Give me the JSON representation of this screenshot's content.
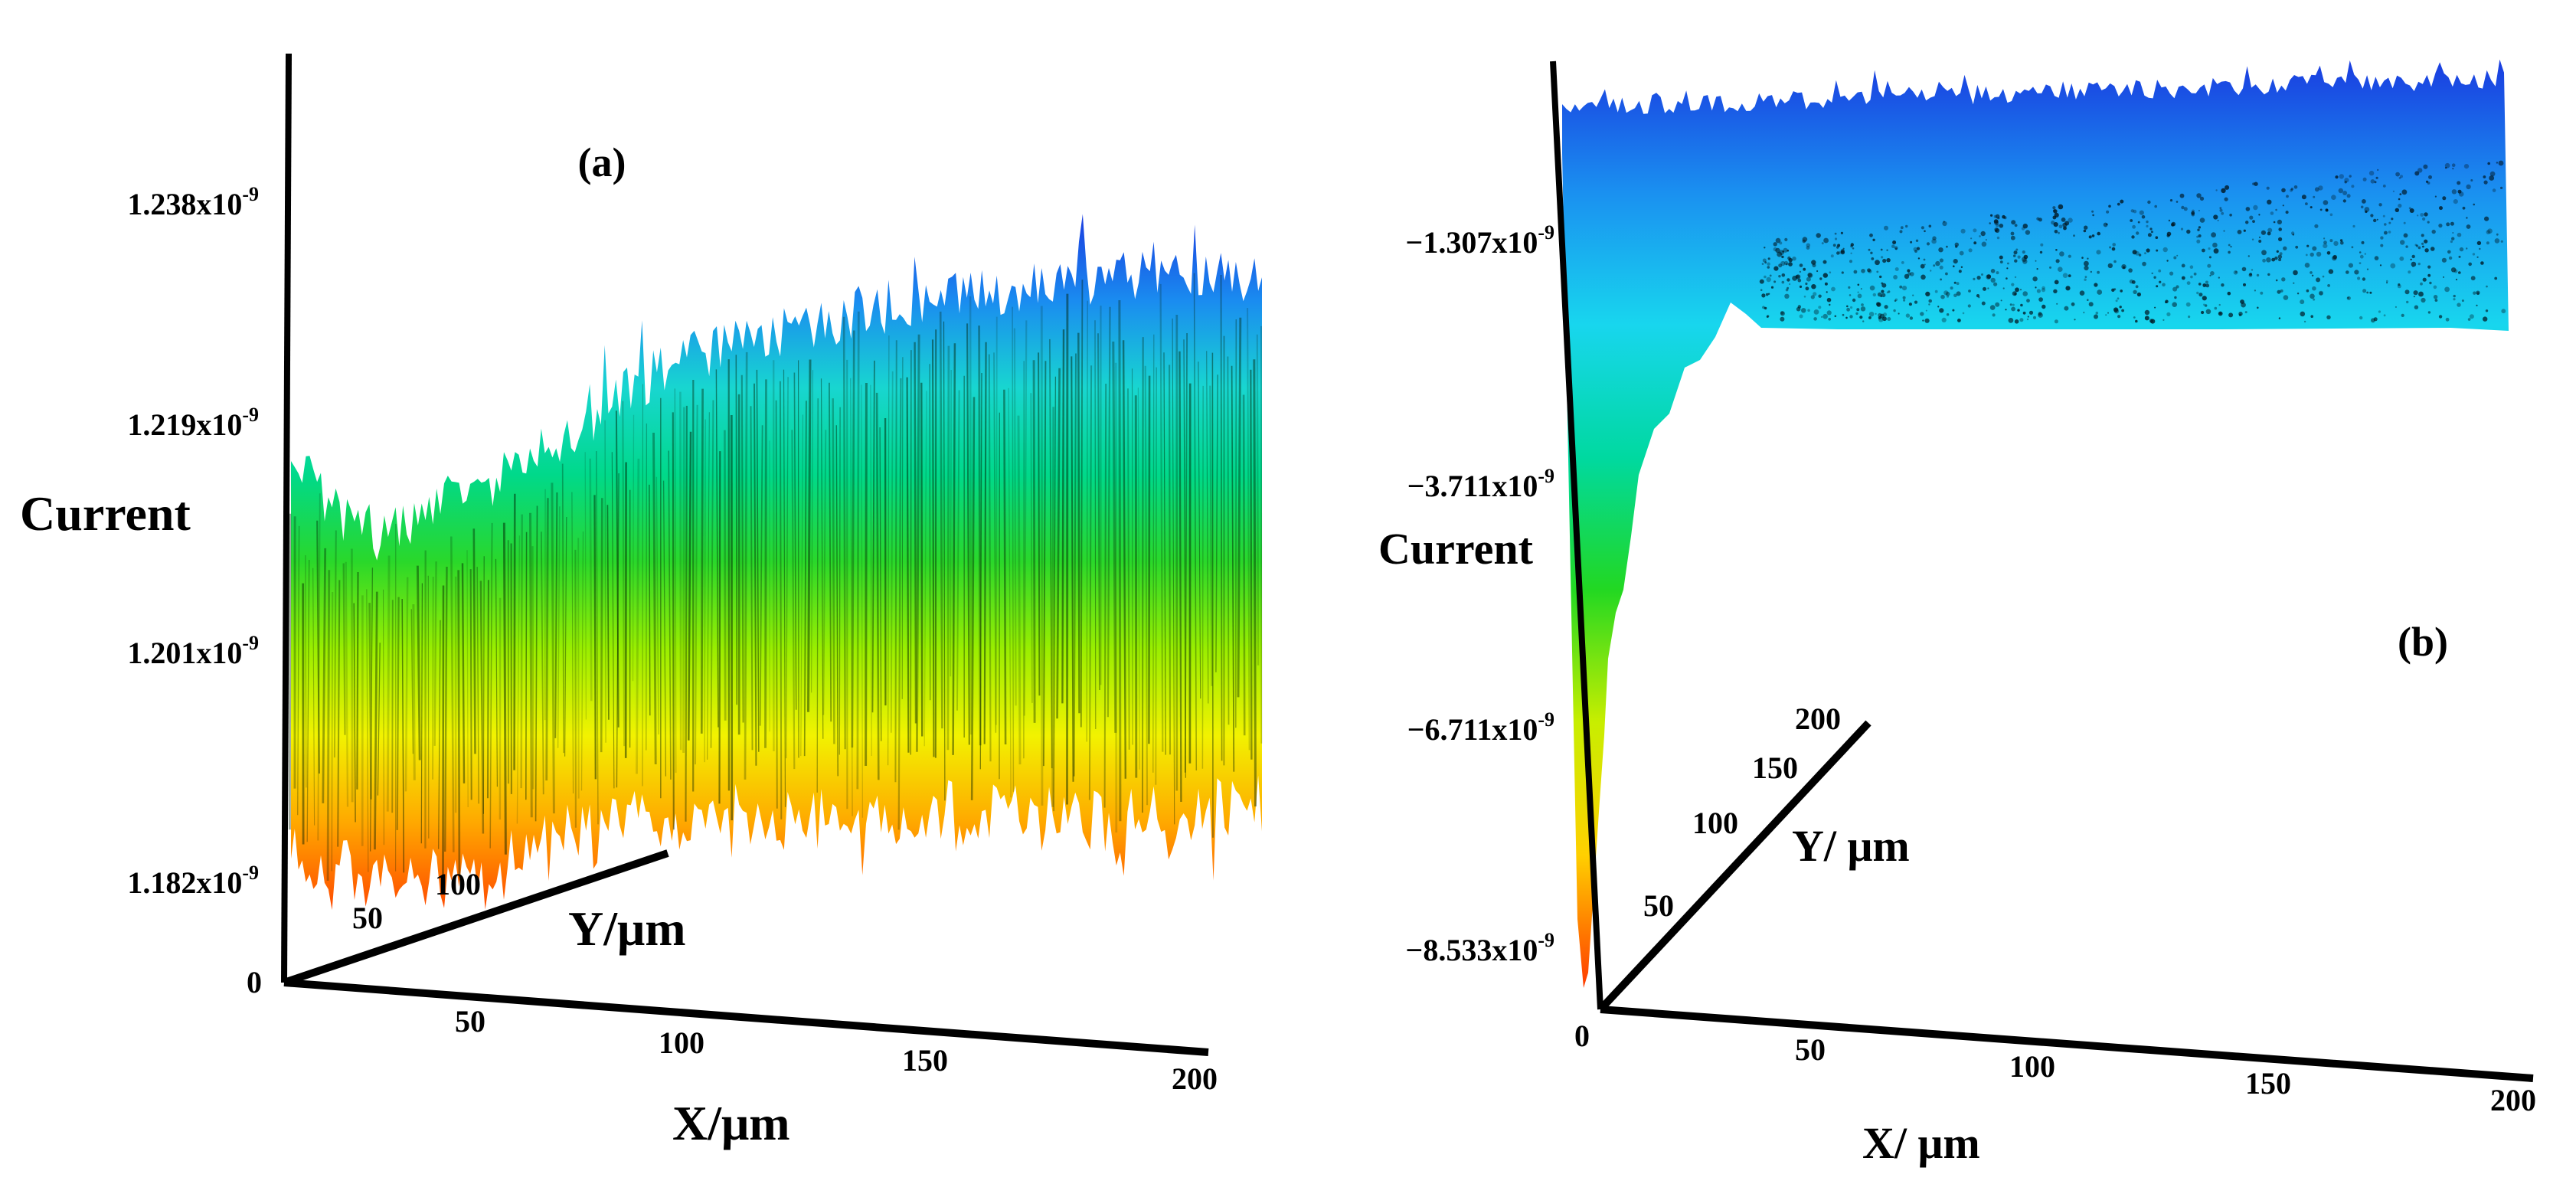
{
  "chart_data": [
    {
      "type": "surface",
      "panel_label": "(a)",
      "zlabel": "Current",
      "xlabel": "X/μm",
      "ylabel": "Y/μm",
      "z_ticks": [
        "1.182x10",
        "1.201x10",
        "1.219x10",
        "1.238x10"
      ],
      "z_tick_exponent": "-9",
      "z_tick_values": [
        1.182e-09,
        1.201e-09,
        1.219e-09,
        1.238e-09
      ],
      "x_ticks": [
        "50",
        "100",
        "150",
        "200"
      ],
      "y_ticks": [
        "50",
        "100"
      ],
      "origin_label": "0",
      "colormap": [
        "#ff4a00",
        "#ffa800",
        "#f2f200",
        "#9aee00",
        "#2ad82a",
        "#00d98a",
        "#18d6d0",
        "#1a8cf0",
        "#1a3ce0"
      ],
      "surface_profile": {
        "x": [
          0,
          10,
          20,
          30,
          40,
          60,
          80,
          100,
          120,
          140,
          160,
          180,
          200
        ],
        "z_top": [
          1.217e-09,
          1.212e-09,
          1.21e-09,
          1.213e-09,
          1.214e-09,
          1.219e-09,
          1.224e-09,
          1.226e-09,
          1.228e-09,
          1.229e-09,
          1.23e-09,
          1.231e-09,
          1.23e-09
        ],
        "z_bottom": [
          1.186e-09,
          1.184e-09,
          1.183e-09,
          1.183e-09,
          1.185e-09,
          1.187e-09,
          1.188e-09,
          1.188e-09,
          1.188e-09,
          1.188e-09,
          1.187e-09,
          1.187e-09,
          1.188e-09
        ]
      }
    },
    {
      "type": "surface",
      "panel_label": "(b)",
      "zlabel": "Current",
      "xlabel": "X/ μm",
      "ylabel": "Y/ μm",
      "z_ticks": [
        "−8.533x10",
        "−6.711x10",
        "−3.711x10",
        "−1.307x10"
      ],
      "z_tick_exponent": "-9",
      "z_tick_values": [
        -8.533e-09,
        -6.711e-09,
        -3.711e-09,
        -1.307e-09
      ],
      "x_ticks": [
        "50",
        "100",
        "150",
        "200"
      ],
      "y_ticks": [
        "50",
        "100",
        "150",
        "200"
      ],
      "origin_label": "0",
      "colormap": [
        "#ff3a00",
        "#ffd000",
        "#c8ee00",
        "#22d822",
        "#00d9a0",
        "#18d6ee",
        "#1a90f0",
        "#1a3ce0"
      ],
      "surface_profile": {
        "x": [
          0,
          2,
          5,
          10,
          15,
          20,
          30,
          40,
          60,
          100,
          150,
          200
        ],
        "z_bottom": [
          -8.8e-09,
          -6.5e-09,
          -4.6e-09,
          -3.8e-09,
          -3e-09,
          -2.4e-09,
          -2.1e-09,
          -1.9e-09,
          -1.85e-09,
          -1.85e-09,
          -1.85e-09,
          -1.85e-09
        ],
        "z_top": [
          -1e-10,
          -1e-10,
          -1e-10,
          -1e-10,
          -1e-10,
          -1e-10,
          -1e-10,
          -1e-10,
          -1e-10,
          -5e-11,
          -5e-11,
          -5e-11
        ]
      }
    }
  ]
}
